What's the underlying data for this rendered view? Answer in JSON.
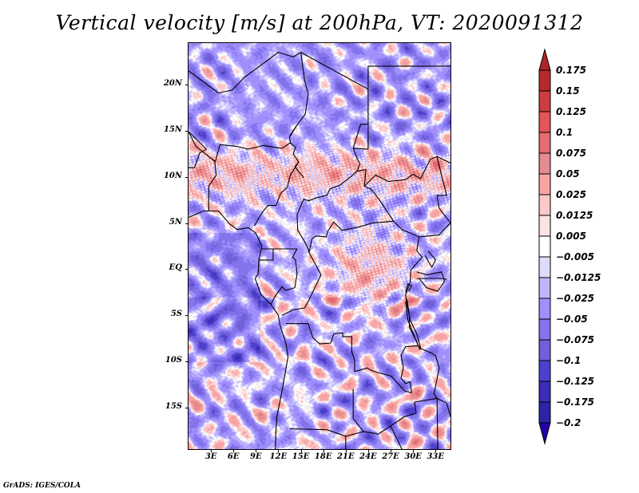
{
  "title": "Vertical velocity [m/s] at 200hPa, VT: 2020091312",
  "credit": "GrADS: IGES/COLA",
  "map": {
    "variable": "Vertical velocity",
    "units": "m/s",
    "level": "200hPa",
    "valid_time": "2020091312",
    "lon_range": [
      0,
      35
    ],
    "lat_range": [
      -19.5,
      24.5
    ],
    "lat_ticks": [
      {
        "label": "20N",
        "value": 20
      },
      {
        "label": "15N",
        "value": 15
      },
      {
        "label": "10N",
        "value": 10
      },
      {
        "label": "5N",
        "value": 5
      },
      {
        "label": "EQ",
        "value": 0
      },
      {
        "label": "5S",
        "value": -5
      },
      {
        "label": "10S",
        "value": -10
      },
      {
        "label": "15S",
        "value": -15
      }
    ],
    "lon_ticks": [
      {
        "label": "3E",
        "value": 3
      },
      {
        "label": "6E",
        "value": 6
      },
      {
        "label": "9E",
        "value": 9
      },
      {
        "label": "12E",
        "value": 12
      },
      {
        "label": "15E",
        "value": 15
      },
      {
        "label": "18E",
        "value": 18
      },
      {
        "label": "21E",
        "value": 21
      },
      {
        "label": "24E",
        "value": 24
      },
      {
        "label": "27E",
        "value": 27
      },
      {
        "label": "30E",
        "value": 30
      },
      {
        "label": "33E",
        "value": 33
      }
    ]
  },
  "colorbar": {
    "labels": [
      "0.175",
      "0.15",
      "0.125",
      "0.1",
      "0.075",
      "0.05",
      "0.025",
      "0.0125",
      "0.005",
      "−0.005",
      "−0.0125",
      "−0.025",
      "−0.05",
      "−0.075",
      "−0.1",
      "−0.125",
      "−0.175",
      "−0.2"
    ],
    "levels": [
      0.175,
      0.15,
      0.125,
      0.1,
      0.075,
      0.05,
      0.025,
      0.0125,
      0.005,
      -0.005,
      -0.0125,
      -0.025,
      -0.05,
      -0.075,
      -0.1,
      -0.125,
      -0.175,
      -0.2
    ],
    "colors_top_to_bottom": [
      "#b02428",
      "#b8292c",
      "#cc3c40",
      "#e45458",
      "#e46c70",
      "#e48c90",
      "#f8a4a4",
      "#fcc8c8",
      "#fce4e4",
      "#ffffff",
      "#dcdcfc",
      "#c0b4fc",
      "#a090fc",
      "#8474ec",
      "#7060dc",
      "#4c40cc",
      "#3c2cb8",
      "#2c24a4",
      "#2400a8"
    ],
    "extend": "both"
  }
}
